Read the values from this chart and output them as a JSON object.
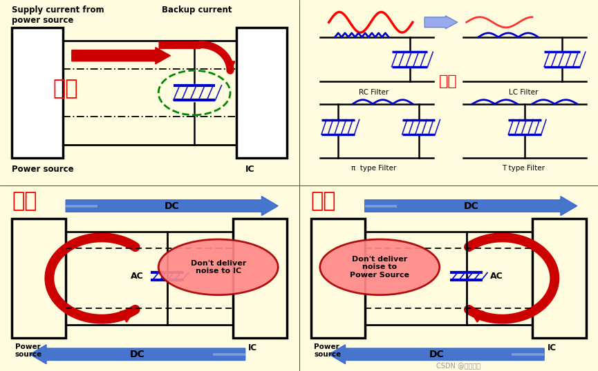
{
  "bg_color": "#FFFCE0",
  "red_label_color": "#FF0000",
  "blue_color": "#0000CC",
  "arrow_blue": "#3366CC",
  "red_arrow": "#CC0000",
  "green_dashed": "#008800",
  "panel_titles": [
    "储能",
    "滤波",
    "旁路",
    "去耦"
  ],
  "quadrant_labels": {
    "tl_title": "Supply current from\npower source",
    "tl_backup": "Backup current",
    "tl_power": "Power source",
    "tl_ic": "IC",
    "tr_rc": "RC Filter",
    "tr_lc": "LC Filter",
    "tr_pi": "π  type Filter",
    "tr_t": "T type Filter",
    "tr_label": "滤波",
    "bl_dc": "DC",
    "bl_dc2": "DC",
    "bl_ps": "Power\nsource",
    "bl_ic": "IC",
    "bl_ac": "AC",
    "bl_msg": "Don't deliver\nnoise to IC",
    "br_dc": "DC",
    "br_dc2": "DC",
    "br_ic": "IC",
    "br_ac": "AC",
    "br_msg": "Don't deliver\nnoise to\nPower Source",
    "watermark": "CSDN @启芯硬件"
  }
}
